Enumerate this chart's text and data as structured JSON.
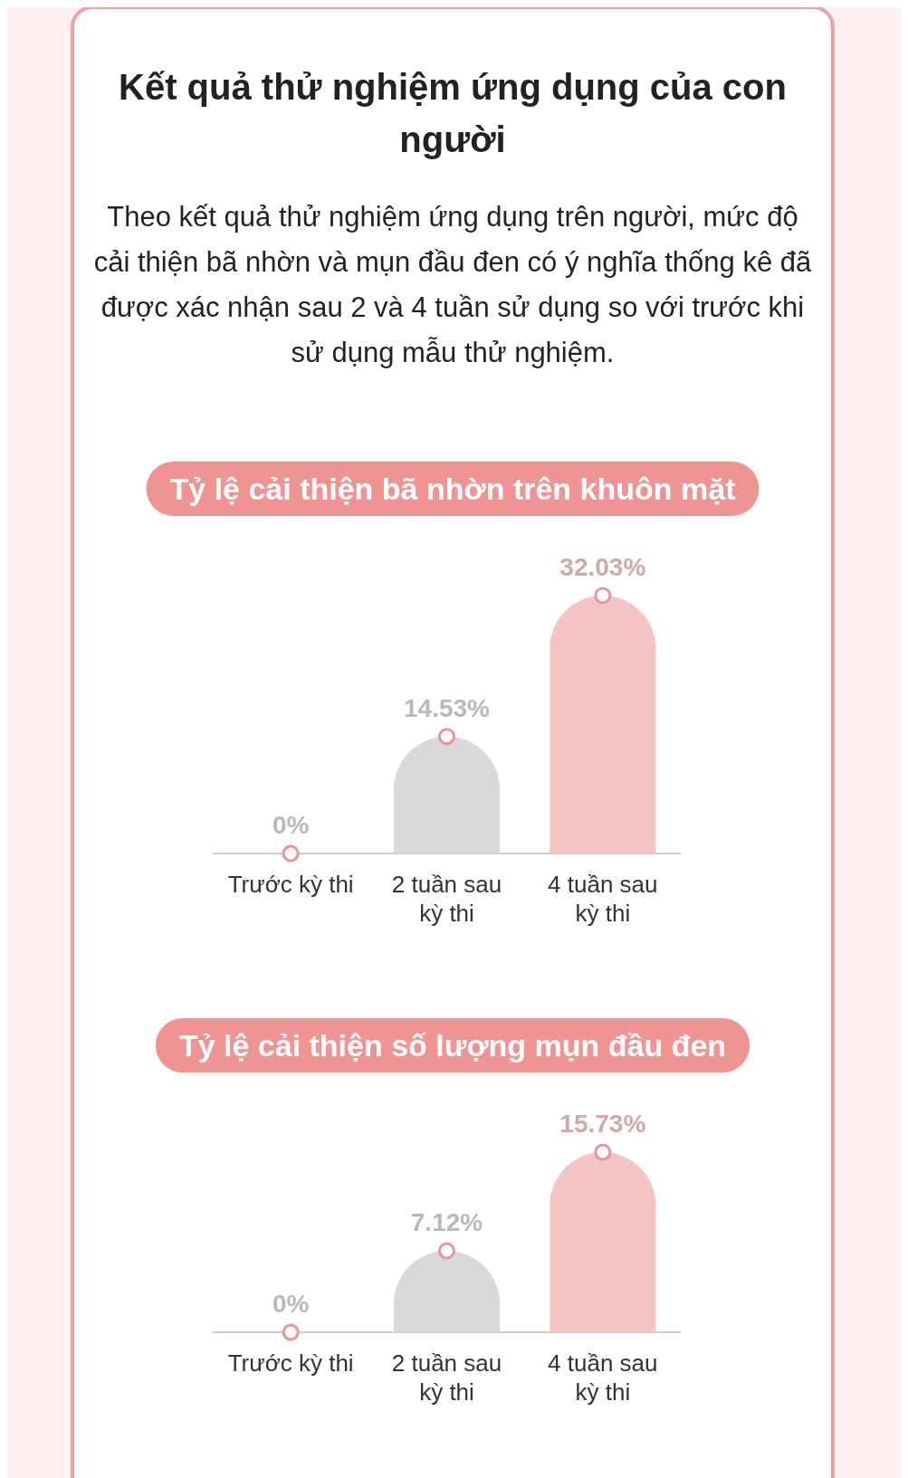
{
  "chart_data": [
    {
      "type": "other",
      "title": "Kết quả thử nghiệm ứng dụng của con người",
      "subtitle": "Theo kết quả thử nghiệm ứng dụng trên người, mức độ cải thiện bã nhờn và mụn đầu đen có ý nghĩa thống kê đã được xác nhận sau 2 và 4 tuần sử dụng so với trước khi sử dụng mẫu thử nghiệm."
    },
    {
      "type": "bar",
      "title": "Tỷ lệ cải thiện bã nhờn trên khuôn mặt",
      "categories": [
        "Trước kỳ thi",
        "2 tuần sau kỳ thi",
        "4 tuần sau kỳ thi"
      ],
      "series": [
        {
          "type": "bar",
          "values": [
            0,
            14.53,
            32.03
          ],
          "value_labels": [
            "0%",
            "14.53%",
            "32.03%"
          ],
          "colors": [
            "#d9d9d9",
            "#d9d9d9",
            "#f5c5c5"
          ]
        },
        {
          "type": "scatter",
          "x": [
            "Trước kỳ thi",
            "2 tuần sau kỳ thi",
            "4 tuần sau kỳ thi"
          ],
          "values": [
            0,
            14.53,
            32.03
          ],
          "color": "#e8959a",
          "marker": "circle"
        }
      ]
    },
    {
      "type": "bar",
      "title": "Tỷ lệ cải thiện số lượng mụn đầu đen",
      "categories": [
        "Trước kỳ thi",
        "2 tuần sau kỳ thi",
        "4 tuần sau kỳ thi"
      ],
      "series": [
        {
          "type": "bar",
          "values": [
            0,
            7.12,
            15.73
          ],
          "value_labels": [
            "0%",
            "7.12%",
            "15.73%"
          ],
          "colors": [
            "#d9d9d9",
            "#d9d9d9",
            "#f5c5c5"
          ]
        },
        {
          "type": "scatter",
          "x": [
            "Trước kỳ thi",
            "2 tuần sau kỳ thi",
            "4 tuần sau kỳ thi"
          ],
          "values": [
            0,
            7.12,
            15.73
          ],
          "color": "#e8959a",
          "marker": "circle"
        }
      ]
    }
  ]
}
